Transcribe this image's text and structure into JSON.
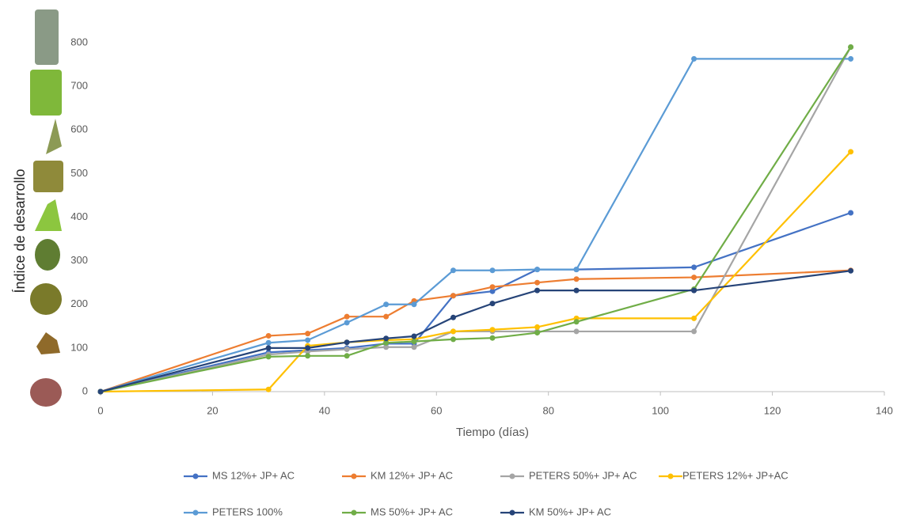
{
  "chart_data": {
    "type": "line",
    "x_label": "Tiempo (días)",
    "y_label": "Índice de desarrollo",
    "x": [
      0,
      30,
      37,
      44,
      51,
      56,
      63,
      70,
      78,
      85,
      106,
      134
    ],
    "series": [
      {
        "name": "MS 12%+ JP+ AC",
        "color": "#4472c4",
        "values": [
          0,
          90,
          95,
          100,
          110,
          110,
          220,
          230,
          280,
          280,
          285,
          410
        ]
      },
      {
        "name": "KM 12%+ JP+ AC",
        "color": "#ed7d31",
        "values": [
          0,
          128,
          133,
          172,
          172,
          208,
          220,
          240,
          250,
          258,
          262,
          278
        ]
      },
      {
        "name": "PETERS 50%+ JP+ AC",
        "color": "#a5a5a5",
        "values": [
          0,
          85,
          92,
          97,
          102,
          102,
          138,
          138,
          138,
          138,
          138,
          790
        ]
      },
      {
        "name": "PETERS 12%+ JP+AC",
        "color": "#ffc000",
        "values": [
          0,
          5,
          105,
          113,
          118,
          120,
          138,
          142,
          148,
          168,
          168,
          550
        ]
      },
      {
        "name": "PETERS 100%",
        "color": "#5b9bd5",
        "values": [
          0,
          112,
          118,
          158,
          200,
          200,
          278,
          278,
          280,
          280,
          763,
          763
        ]
      },
      {
        "name": "MS 50%+ JP+ AC",
        "color": "#70ad47",
        "values": [
          0,
          80,
          82,
          82,
          112,
          115,
          120,
          123,
          135,
          160,
          235,
          790
        ]
      },
      {
        "name": "KM 50%+ JP+ AC",
        "color": "#264478",
        "values": [
          0,
          100,
          100,
          113,
          122,
          127,
          170,
          202,
          232,
          232,
          232,
          277
        ]
      }
    ],
    "xlim": [
      0,
      140
    ],
    "xticks": [
      0,
      20,
      40,
      60,
      80,
      100,
      120,
      140
    ],
    "ylim": [
      0,
      800
    ],
    "yticks": [
      0,
      100,
      200,
      300,
      400,
      500,
      600,
      700,
      800
    ],
    "grid": false
  }
}
